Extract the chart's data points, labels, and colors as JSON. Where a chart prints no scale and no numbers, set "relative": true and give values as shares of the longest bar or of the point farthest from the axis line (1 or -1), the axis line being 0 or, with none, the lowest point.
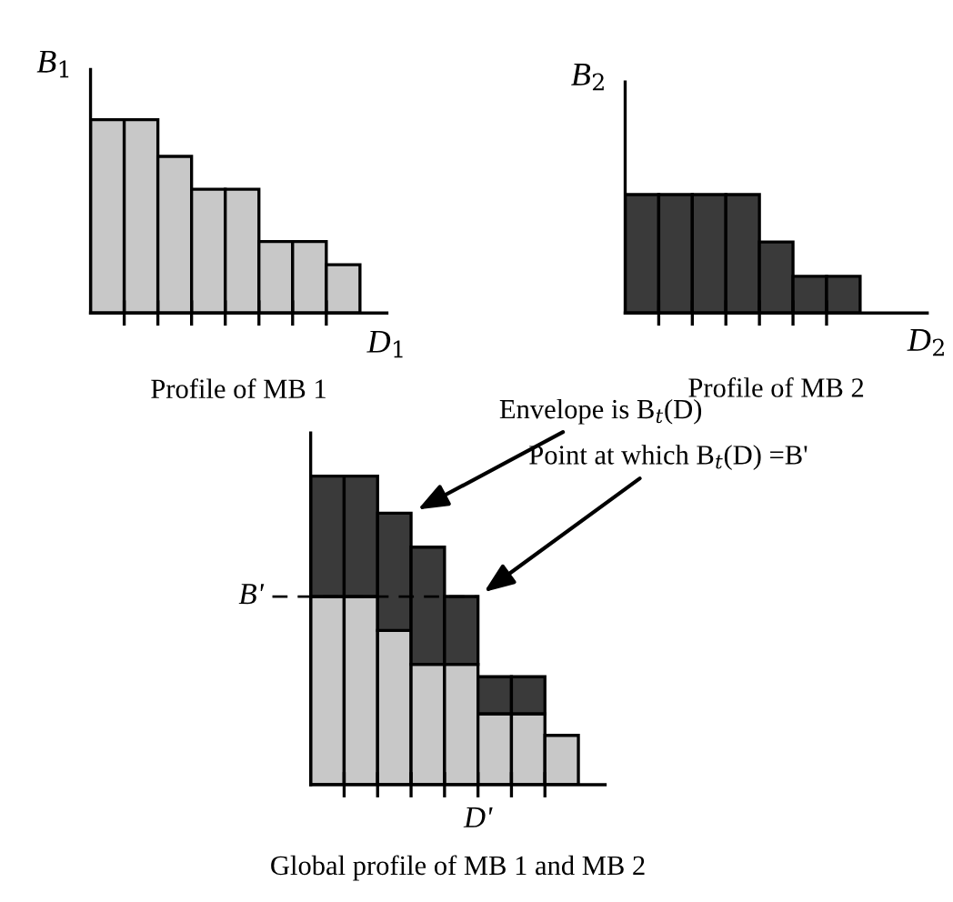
{
  "chart_data": [
    {
      "type": "bar",
      "relative": true,
      "title": "Profile of MB 1",
      "xlabel": "D$_{1}$",
      "ylabel": "B$_{1}$",
      "categories": [
        null,
        null,
        null,
        null,
        null,
        null,
        null,
        null
      ],
      "values": [
        1,
        1,
        0.81,
        0.64,
        0.64,
        0.37,
        0.37,
        0.25
      ],
      "color": "#c8c8c8"
    },
    {
      "type": "bar",
      "relative": true,
      "title": "Profile of MB 2",
      "xlabel": "D$_{2}$",
      "ylabel": "B$_{2}$",
      "categories": [
        null,
        null,
        null,
        null,
        null,
        null,
        null
      ],
      "values": [
        1,
        1,
        1,
        1,
        0.6,
        0.31,
        0.31
      ],
      "color": "#3a3a3a"
    },
    {
      "type": "bar",
      "relative": true,
      "stacked": true,
      "title": "Global profile of MB 1 and MB 2",
      "categories": [
        null,
        null,
        null,
        null,
        null,
        null,
        null,
        null
      ],
      "series": [
        {
          "color": "#c8c8c8",
          "values": [
            0.61,
            0.61,
            0.5,
            0.39,
            0.39,
            0.23,
            0.23,
            0.16
          ]
        },
        {
          "color": "#3a3a3a",
          "values": [
            0.39,
            0.39,
            0.38,
            0.38,
            0.22,
            0.12,
            0.12,
            null
          ]
        }
      ],
      "ref_lines": [
        {
          "axis": "y",
          "value": 0.61,
          "label": "B'",
          "line_style": "dashed"
        }
      ],
      "annotations": [
        "Envelope is B$_{t}$(D)",
        "Point at which B$_{t}$(D) =B'",
        "D'"
      ]
    }
  ]
}
